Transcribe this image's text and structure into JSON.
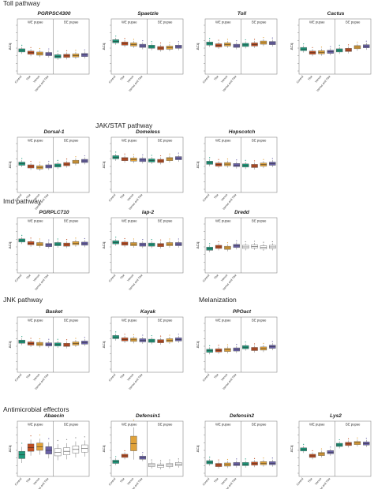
{
  "colors": {
    "Control": "#1e9a7c",
    "Tlse": "#c04f23",
    "Varroa": "#e0a23a",
    "Varroa_and_Tlse": "#6a62a8",
    "neutral": "#ffffff",
    "outline": "#555555"
  },
  "axis_label": "ΔCq",
  "group_labels": [
    "WE pupae",
    "BE pupae"
  ],
  "categories": [
    "Control",
    "Tlse",
    "Varroa",
    "Varroa and Tlse"
  ],
  "sections": [
    {
      "title": "Toll pathway"
    },
    {
      "title": "JAK/STAT pathway"
    },
    {
      "title": "Imd pathway"
    },
    {
      "title": "JNK pathway"
    },
    {
      "title": "Melanization"
    },
    {
      "title": "Antimicrobial effectors"
    }
  ],
  "chart_data": [
    {
      "type": "box",
      "title": "PGRPSC4300",
      "section": "Toll pathway",
      "ylim": [
        0,
        10
      ],
      "BE_colored": true,
      "medians": [
        4.5,
        4.0,
        3.8,
        3.7,
        3.2,
        3.3,
        3.4,
        3.5
      ]
    },
    {
      "type": "box",
      "title": "Spaetzle",
      "section": "Toll pathway",
      "ylim": [
        0,
        10
      ],
      "BE_colored": true,
      "medians": [
        6.5,
        6.0,
        5.8,
        5.5,
        5.3,
        5.0,
        5.1,
        5.3
      ]
    },
    {
      "type": "box",
      "title": "Toll",
      "section": "Toll pathway",
      "ylim": [
        0,
        10
      ],
      "BE_colored": true,
      "medians": [
        6.0,
        5.6,
        5.8,
        5.5,
        5.7,
        5.8,
        6.2,
        6.1
      ]
    },
    {
      "type": "box",
      "title": "Cactus",
      "section": "Toll pathway",
      "ylim": [
        0,
        10
      ],
      "BE_colored": true,
      "medians": [
        4.8,
        4.0,
        4.1,
        4.2,
        4.5,
        4.6,
        5.2,
        5.4
      ]
    },
    {
      "type": "box",
      "title": "Dorsal-1",
      "section": "JAK/STAT pathway",
      "ylim": [
        0,
        10
      ],
      "BE_colored": true,
      "medians": [
        5.6,
        5.0,
        4.8,
        5.0,
        5.2,
        5.5,
        6.0,
        6.2
      ]
    },
    {
      "type": "box",
      "title": "Domeless",
      "section": "JAK/STAT pathway",
      "ylim": [
        0,
        10
      ],
      "BE_colored": true,
      "medians": [
        7.0,
        6.6,
        6.5,
        6.4,
        6.3,
        6.2,
        6.6,
        6.8
      ]
    },
    {
      "type": "box",
      "title": "Hopscotch",
      "section": "JAK/STAT pathway",
      "ylim": [
        0,
        10
      ],
      "BE_colored": true,
      "medians": [
        5.8,
        5.4,
        5.5,
        5.3,
        5.2,
        5.1,
        5.4,
        5.6
      ]
    },
    {
      "type": "box",
      "title": "PGRPLC710",
      "section": "Imd pathway",
      "ylim": [
        0,
        10
      ],
      "BE_colored": true,
      "medians": [
        6.4,
        5.8,
        5.6,
        5.4,
        5.6,
        5.5,
        5.8,
        5.7
      ]
    },
    {
      "type": "box",
      "title": "Iap-2",
      "section": "Imd pathway",
      "ylim": [
        0,
        10
      ],
      "BE_colored": true,
      "medians": [
        6.0,
        5.7,
        5.6,
        5.5,
        5.5,
        5.4,
        5.6,
        5.6
      ]
    },
    {
      "type": "box",
      "title": "Dredd",
      "section": "Imd pathway",
      "ylim": [
        0,
        10
      ],
      "BE_colored": false,
      "medians": [
        4.6,
        5.0,
        4.8,
        5.2,
        5.0,
        5.1,
        4.9,
        5.0
      ]
    },
    {
      "type": "box",
      "title": "Basket",
      "section": "JNK pathway",
      "ylim": [
        0,
        10
      ],
      "BE_colored": true,
      "medians": [
        6.0,
        5.6,
        5.5,
        5.4,
        5.4,
        5.3,
        5.6,
        5.8
      ]
    },
    {
      "type": "box",
      "title": "Kayak",
      "section": "JNK pathway",
      "ylim": [
        0,
        10
      ],
      "BE_colored": true,
      "medians": [
        7.0,
        6.5,
        6.4,
        6.3,
        6.2,
        6.1,
        6.3,
        6.5
      ]
    },
    {
      "type": "box",
      "title": "PPOact",
      "section": "Melanization",
      "ylim": [
        0,
        10
      ],
      "BE_colored": true,
      "medians": [
        4.0,
        4.1,
        4.2,
        4.3,
        4.8,
        4.4,
        4.5,
        4.9
      ]
    },
    {
      "type": "box",
      "title": "Abaecin",
      "section": "Antimicrobial effectors",
      "ylim": [
        0,
        10
      ],
      "BE_colored": false,
      "medians": [
        4.0,
        5.6,
        5.8,
        5.0,
        4.6,
        4.8,
        5.2,
        5.4
      ]
    },
    {
      "type": "box",
      "title": "Defensin1",
      "section": "Antimicrobial effectors",
      "ylim": [
        0,
        10
      ],
      "BE_colored": false,
      "medians": [
        2.5,
        3.8,
        6.5,
        3.4,
        1.8,
        1.6,
        1.8,
        2.0
      ]
    },
    {
      "type": "box",
      "title": "Defensin2",
      "section": "Antimicrobial effectors",
      "ylim": [
        0,
        10
      ],
      "BE_colored": true,
      "medians": [
        2.4,
        1.8,
        1.9,
        2.0,
        2.0,
        2.1,
        2.2,
        2.2
      ]
    },
    {
      "type": "box",
      "title": "Lys2",
      "section": "Antimicrobial effectors",
      "ylim": [
        0,
        10
      ],
      "BE_colored": true,
      "medians": [
        5.2,
        3.8,
        4.2,
        4.6,
        6.2,
        6.4,
        6.6,
        6.5
      ]
    }
  ]
}
